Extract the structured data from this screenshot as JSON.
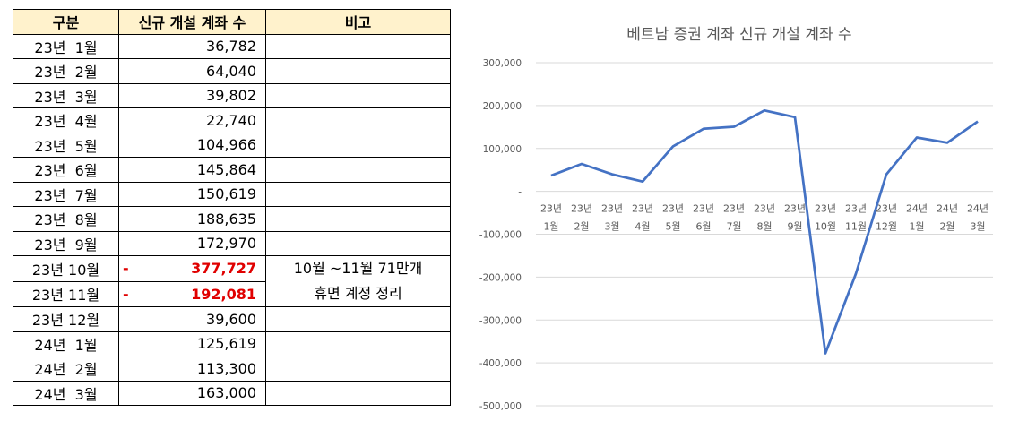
{
  "table": {
    "headers": [
      "구분",
      "신규 개설 계좌 수",
      "비고"
    ],
    "rows": [
      {
        "label": "23년  1월",
        "value": "36,782",
        "dash": "",
        "red": false
      },
      {
        "label": "23년  2월",
        "value": "64,040",
        "dash": "",
        "red": false
      },
      {
        "label": "23년  3월",
        "value": "39,802",
        "dash": "",
        "red": false
      },
      {
        "label": "23년  4월",
        "value": "22,740",
        "dash": "",
        "red": false
      },
      {
        "label": "23년  5월",
        "value": "104,966",
        "dash": "",
        "red": false
      },
      {
        "label": "23년  6월",
        "value": "145,864",
        "dash": "",
        "red": false
      },
      {
        "label": "23년  7월",
        "value": "150,619",
        "dash": "",
        "red": false
      },
      {
        "label": "23년  8월",
        "value": "188,635",
        "dash": "",
        "red": false
      },
      {
        "label": "23년  9월",
        "value": "172,970",
        "dash": "",
        "red": false
      },
      {
        "label": "23년 10월",
        "value": "377,727",
        "dash": "-",
        "red": true
      },
      {
        "label": "23년 11월",
        "value": "192,081",
        "dash": "-",
        "red": true
      },
      {
        "label": "23년 12월",
        "value": "39,600",
        "dash": "",
        "red": false
      },
      {
        "label": "24년  1월",
        "value": "125,619",
        "dash": "",
        "red": false
      },
      {
        "label": "24년  2월",
        "value": "113,300",
        "dash": "",
        "red": false
      },
      {
        "label": "24년  3월",
        "value": "163,000",
        "dash": "",
        "red": false
      }
    ],
    "note_line1": "10월 ~11월 71만개",
    "note_line2": "휴면 계정 정리"
  },
  "chart_data": {
    "type": "line",
    "title": "베트남 증권 계좌 신규 개설 계좌 수",
    "categories": [
      [
        "23년",
        "1월"
      ],
      [
        "23년",
        "2월"
      ],
      [
        "23년",
        "3월"
      ],
      [
        "23년",
        "4월"
      ],
      [
        "23년",
        "5월"
      ],
      [
        "23년",
        "6월"
      ],
      [
        "23년",
        "7월"
      ],
      [
        "23년",
        "8월"
      ],
      [
        "23년",
        "9월"
      ],
      [
        "23년",
        "10월"
      ],
      [
        "23년",
        "11월"
      ],
      [
        "23년",
        "12월"
      ],
      [
        "24년",
        "1월"
      ],
      [
        "24년",
        "2월"
      ],
      [
        "24년",
        "3월"
      ]
    ],
    "series": [
      {
        "values": [
          36782,
          64040,
          39802,
          22740,
          104966,
          145864,
          150619,
          188635,
          172970,
          -377727,
          -192081,
          39600,
          125619,
          113300,
          163000
        ]
      }
    ],
    "yticks": [
      300000,
      200000,
      100000,
      0,
      -100000,
      -200000,
      -300000,
      -400000,
      -500000
    ],
    "ytick_labels": [
      "300,000",
      "200,000",
      "100,000",
      "-",
      "-100,000",
      "-200,000",
      "-300,000",
      "-400,000",
      "-500,000"
    ],
    "ylim": [
      -500000,
      300000
    ],
    "line_color": "#4472c4",
    "grid": true,
    "legend": "none"
  }
}
